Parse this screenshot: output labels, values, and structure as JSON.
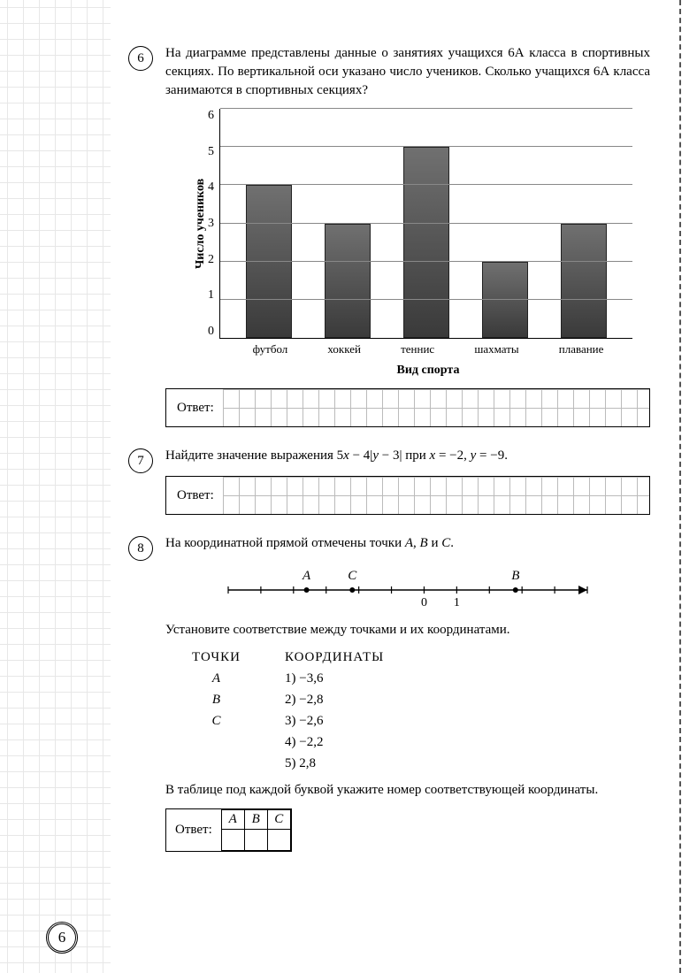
{
  "page_number": "6",
  "answer_label": "Ответ:",
  "q6": {
    "num": "6",
    "text": "На диаграмме представлены данные о занятиях учащихся 6А класса в спортивных секциях. По вертикальной оси указано число учеников. Сколько учащихся 6А класса занимаются в спортивных секциях?",
    "chart": {
      "type": "bar",
      "ylabel": "Число учеников",
      "xtitle": "Вид спорта",
      "ymax": 6,
      "yticks": [
        "6",
        "5",
        "4",
        "3",
        "2",
        "1",
        "0"
      ],
      "categories": [
        "футбол",
        "хоккей",
        "теннис",
        "шахматы",
        "плавание"
      ],
      "values": [
        4,
        3,
        5,
        2,
        3
      ],
      "bar_color": "#555555",
      "grid_color": "#888888"
    }
  },
  "q7": {
    "num": "7",
    "text_prefix": "Найдите значение выражения 5",
    "text_mid1": " − 4|",
    "text_mid2": " − 3| при ",
    "text_mid3": " = −2, ",
    "text_suffix": " = −9.",
    "var_x": "x",
    "var_y": "y"
  },
  "q8": {
    "num": "8",
    "intro_prefix": "На координатной прямой отмечены точки ",
    "intro_suffix": ".",
    "pt_A": "A",
    "pt_B": "B",
    "pt_C": "C",
    "sep1": ", ",
    "sep2": " и ",
    "instr": "Установите соответствие между точками и их координатами.",
    "hd_points": "ТОЧКИ",
    "hd_coords": "КООРДИНАТЫ",
    "points": [
      "A",
      "B",
      "C"
    ],
    "coords": [
      "1) −3,6",
      "2) −2,8",
      "3) −2,6",
      "4) −2,2",
      "5) 2,8"
    ],
    "instr2": "В таблице под каждой буквой укажите номер соответствующей координаты.",
    "table_heads": [
      "A",
      "B",
      "C"
    ],
    "numberline": {
      "labels": {
        "A": "A",
        "C": "C",
        "B": "B",
        "zero": "0",
        "one": "1"
      },
      "range": [
        -6,
        5
      ],
      "marks": {
        "A": -3.6,
        "C": -2.2,
        "B": 2.8,
        "zero": 0,
        "one": 1
      }
    }
  }
}
